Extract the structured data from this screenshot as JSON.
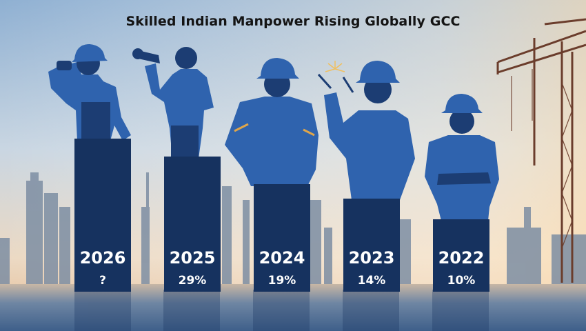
{
  "title": "Skilled Indian Manpower Rising Globally GCC",
  "chart_data": {
    "type": "bar",
    "title": "Skilled Indian Manpower Rising Globally GCC",
    "categories": [
      "2026",
      "2025",
      "2024",
      "2023",
      "2022"
    ],
    "value_labels": [
      "?",
      "29%",
      "19%",
      "14%",
      "10%"
    ],
    "values": [
      null,
      29,
      19,
      14,
      10
    ],
    "xlabel": "",
    "ylabel": "",
    "grid": false,
    "legend": "none"
  },
  "colors": {
    "bar": "#16325f",
    "worker": "#2f63ae",
    "worker_dark": "#1c3d73",
    "sky_top": "#9cbad8",
    "sky_horizon": "#ecd9c3"
  },
  "icons": [
    "worker-silhouette-icon",
    "hard-hat-icon",
    "crane-icon",
    "welding-spark-icon"
  ]
}
